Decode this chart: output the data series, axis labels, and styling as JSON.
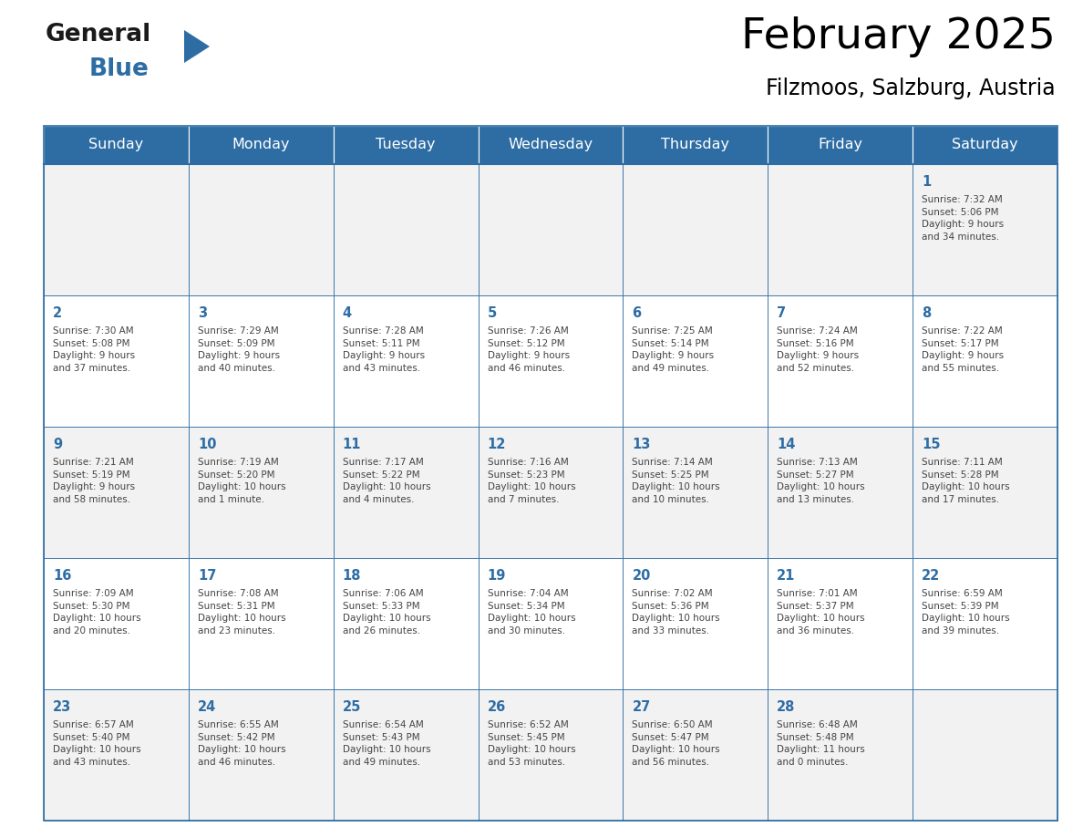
{
  "title": "February 2025",
  "subtitle": "Filzmoos, Salzburg, Austria",
  "days_of_week": [
    "Sunday",
    "Monday",
    "Tuesday",
    "Wednesday",
    "Thursday",
    "Friday",
    "Saturday"
  ],
  "header_bg": "#2E6DA4",
  "header_text": "#FFFFFF",
  "cell_bg_odd": "#F2F2F2",
  "cell_bg_even": "#FFFFFF",
  "border_color": "#2E6DA4",
  "day_number_color": "#2E6DA4",
  "text_color": "#444444",
  "logo_general_color": "#1a1a1a",
  "logo_blue_color": "#2E6DA4",
  "figsize": [
    11.88,
    9.18
  ],
  "dpi": 100,
  "calendar_data": [
    [
      null,
      null,
      null,
      null,
      null,
      null,
      {
        "day": 1,
        "sunrise": "7:32 AM",
        "sunset": "5:06 PM",
        "daylight": "9 hours\nand 34 minutes."
      }
    ],
    [
      {
        "day": 2,
        "sunrise": "7:30 AM",
        "sunset": "5:08 PM",
        "daylight": "9 hours\nand 37 minutes."
      },
      {
        "day": 3,
        "sunrise": "7:29 AM",
        "sunset": "5:09 PM",
        "daylight": "9 hours\nand 40 minutes."
      },
      {
        "day": 4,
        "sunrise": "7:28 AM",
        "sunset": "5:11 PM",
        "daylight": "9 hours\nand 43 minutes."
      },
      {
        "day": 5,
        "sunrise": "7:26 AM",
        "sunset": "5:12 PM",
        "daylight": "9 hours\nand 46 minutes."
      },
      {
        "day": 6,
        "sunrise": "7:25 AM",
        "sunset": "5:14 PM",
        "daylight": "9 hours\nand 49 minutes."
      },
      {
        "day": 7,
        "sunrise": "7:24 AM",
        "sunset": "5:16 PM",
        "daylight": "9 hours\nand 52 minutes."
      },
      {
        "day": 8,
        "sunrise": "7:22 AM",
        "sunset": "5:17 PM",
        "daylight": "9 hours\nand 55 minutes."
      }
    ],
    [
      {
        "day": 9,
        "sunrise": "7:21 AM",
        "sunset": "5:19 PM",
        "daylight": "9 hours\nand 58 minutes."
      },
      {
        "day": 10,
        "sunrise": "7:19 AM",
        "sunset": "5:20 PM",
        "daylight": "10 hours\nand 1 minute."
      },
      {
        "day": 11,
        "sunrise": "7:17 AM",
        "sunset": "5:22 PM",
        "daylight": "10 hours\nand 4 minutes."
      },
      {
        "day": 12,
        "sunrise": "7:16 AM",
        "sunset": "5:23 PM",
        "daylight": "10 hours\nand 7 minutes."
      },
      {
        "day": 13,
        "sunrise": "7:14 AM",
        "sunset": "5:25 PM",
        "daylight": "10 hours\nand 10 minutes."
      },
      {
        "day": 14,
        "sunrise": "7:13 AM",
        "sunset": "5:27 PM",
        "daylight": "10 hours\nand 13 minutes."
      },
      {
        "day": 15,
        "sunrise": "7:11 AM",
        "sunset": "5:28 PM",
        "daylight": "10 hours\nand 17 minutes."
      }
    ],
    [
      {
        "day": 16,
        "sunrise": "7:09 AM",
        "sunset": "5:30 PM",
        "daylight": "10 hours\nand 20 minutes."
      },
      {
        "day": 17,
        "sunrise": "7:08 AM",
        "sunset": "5:31 PM",
        "daylight": "10 hours\nand 23 minutes."
      },
      {
        "day": 18,
        "sunrise": "7:06 AM",
        "sunset": "5:33 PM",
        "daylight": "10 hours\nand 26 minutes."
      },
      {
        "day": 19,
        "sunrise": "7:04 AM",
        "sunset": "5:34 PM",
        "daylight": "10 hours\nand 30 minutes."
      },
      {
        "day": 20,
        "sunrise": "7:02 AM",
        "sunset": "5:36 PM",
        "daylight": "10 hours\nand 33 minutes."
      },
      {
        "day": 21,
        "sunrise": "7:01 AM",
        "sunset": "5:37 PM",
        "daylight": "10 hours\nand 36 minutes."
      },
      {
        "day": 22,
        "sunrise": "6:59 AM",
        "sunset": "5:39 PM",
        "daylight": "10 hours\nand 39 minutes."
      }
    ],
    [
      {
        "day": 23,
        "sunrise": "6:57 AM",
        "sunset": "5:40 PM",
        "daylight": "10 hours\nand 43 minutes."
      },
      {
        "day": 24,
        "sunrise": "6:55 AM",
        "sunset": "5:42 PM",
        "daylight": "10 hours\nand 46 minutes."
      },
      {
        "day": 25,
        "sunrise": "6:54 AM",
        "sunset": "5:43 PM",
        "daylight": "10 hours\nand 49 minutes."
      },
      {
        "day": 26,
        "sunrise": "6:52 AM",
        "sunset": "5:45 PM",
        "daylight": "10 hours\nand 53 minutes."
      },
      {
        "day": 27,
        "sunrise": "6:50 AM",
        "sunset": "5:47 PM",
        "daylight": "10 hours\nand 56 minutes."
      },
      {
        "day": 28,
        "sunrise": "6:48 AM",
        "sunset": "5:48 PM",
        "daylight": "11 hours\nand 0 minutes."
      },
      null
    ]
  ]
}
